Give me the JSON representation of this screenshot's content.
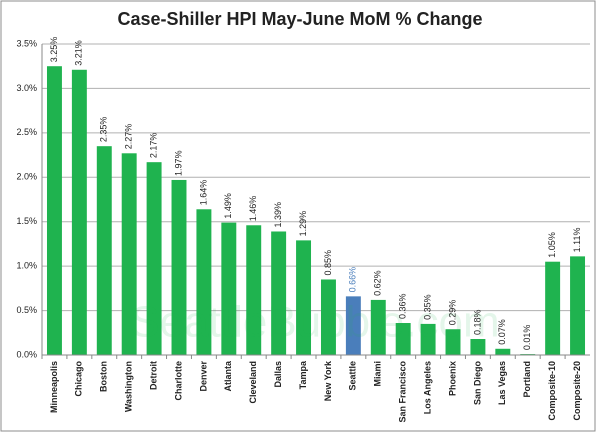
{
  "chart_data": {
    "type": "bar",
    "title": "Case-Shiller HPI May-June MoM % Change",
    "watermark": "SeattleBubble.com",
    "categories": [
      "Minneapolis",
      "Chicago",
      "Boston",
      "Washington",
      "Detroit",
      "Charlotte",
      "Denver",
      "Atlanta",
      "Cleveland",
      "Dallas",
      "Tampa",
      "New York",
      "Seattle",
      "Miami",
      "San Francisco",
      "Los Angeles",
      "Phoenix",
      "San Diego",
      "Las Vegas",
      "Portland",
      "Composite-10",
      "Composite-20"
    ],
    "values": [
      3.25,
      3.21,
      2.35,
      2.27,
      2.17,
      1.97,
      1.64,
      1.49,
      1.46,
      1.39,
      1.29,
      0.85,
      0.66,
      0.62,
      0.36,
      0.35,
      0.29,
      0.18,
      0.07,
      0.01,
      1.05,
      1.11
    ],
    "value_labels": [
      "3.25%",
      "3.21%",
      "2.35%",
      "2.27%",
      "2.17%",
      "1.97%",
      "1.64%",
      "1.49%",
      "1.46%",
      "1.39%",
      "1.29%",
      "0.85%",
      "0.66%",
      "0.62%",
      "0.36%",
      "0.35%",
      "0.29%",
      "0.18%",
      "0.07%",
      "0.01%",
      "1.05%",
      "1.11%"
    ],
    "color": "#1fb34f",
    "colors": [
      "#1fb34f",
      "#1fb34f",
      "#1fb34f",
      "#1fb34f",
      "#1fb34f",
      "#1fb34f",
      "#1fb34f",
      "#1fb34f",
      "#1fb34f",
      "#1fb34f",
      "#1fb34f",
      "#1fb34f",
      "#4a7ebb",
      "#1fb34f",
      "#1fb34f",
      "#1fb34f",
      "#1fb34f",
      "#1fb34f",
      "#1fb34f",
      "#1fb34f",
      "#1fb34f",
      "#1fb34f"
    ],
    "ylim": [
      0,
      3.5
    ],
    "yticks": [
      {
        "value": 0,
        "label": "0.0%"
      },
      {
        "value": 0.5,
        "label": "0.5%"
      },
      {
        "value": 1,
        "label": "1.0%"
      },
      {
        "value": 1.5,
        "label": "1.5%"
      },
      {
        "value": 2,
        "label": "2.0%"
      },
      {
        "value": 2.5,
        "label": "2.5%"
      },
      {
        "value": 3,
        "label": "3.0%"
      },
      {
        "value": 3.5,
        "label": "3.5%"
      }
    ],
    "grid": true
  }
}
